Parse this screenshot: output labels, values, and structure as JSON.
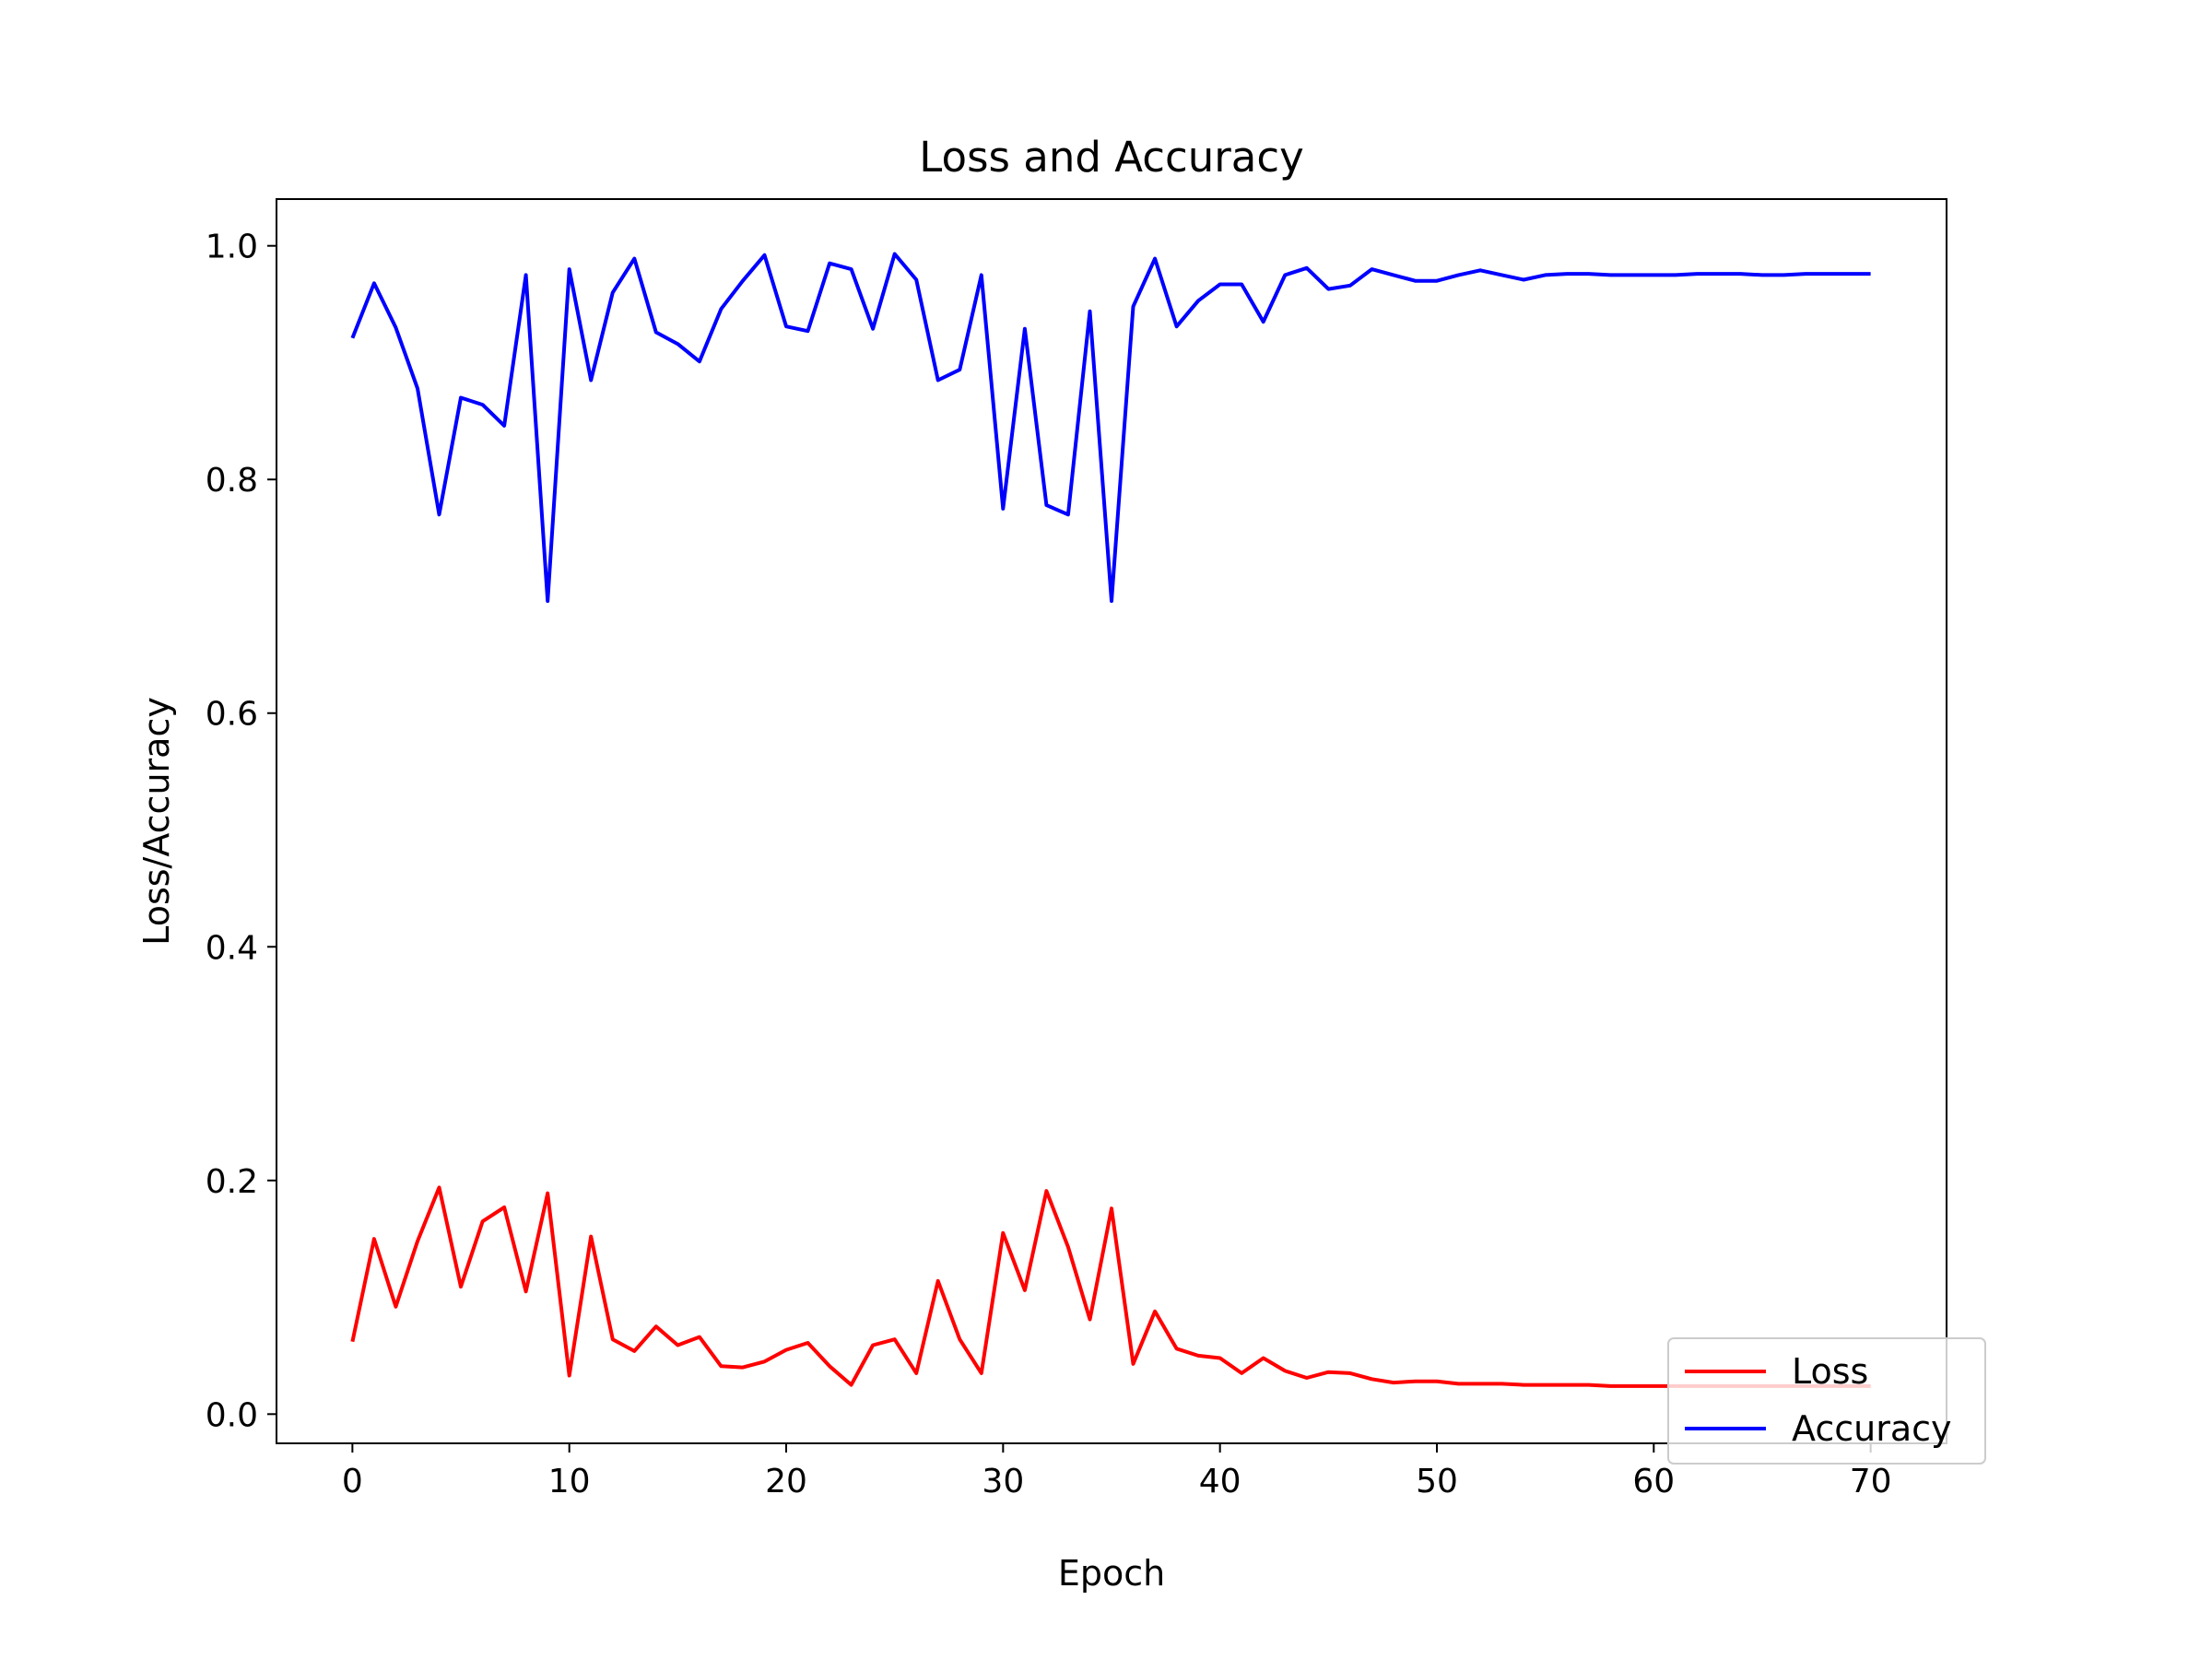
{
  "chart_data": {
    "type": "line",
    "title": "Loss and Accuracy",
    "xlabel": "Epoch",
    "ylabel": "Loss/Accuracy",
    "xlim": [
      -3.5,
      73.5
    ],
    "ylim": [
      -0.025,
      1.04
    ],
    "xticks": [
      0,
      10,
      20,
      30,
      40,
      50,
      60,
      70
    ],
    "yticks": [
      0.0,
      0.2,
      0.4,
      0.6,
      0.8,
      1.0
    ],
    "xtick_labels": [
      "0",
      "10",
      "20",
      "30",
      "40",
      "50",
      "60",
      "70"
    ],
    "ytick_labels": [
      "0.0",
      "0.2",
      "0.4",
      "0.6",
      "0.8",
      "1.0"
    ],
    "grid": false,
    "legend_position": "lower right",
    "x": [
      0,
      1,
      2,
      3,
      4,
      5,
      6,
      7,
      8,
      9,
      10,
      11,
      12,
      13,
      14,
      15,
      16,
      17,
      18,
      19,
      20,
      21,
      22,
      23,
      24,
      25,
      26,
      27,
      28,
      29,
      30,
      31,
      32,
      33,
      34,
      35,
      36,
      37,
      38,
      39,
      40,
      41,
      42,
      43,
      44,
      45,
      46,
      47,
      48,
      49,
      50,
      51,
      52,
      53,
      54,
      55,
      56,
      57,
      58,
      59,
      60,
      61,
      62,
      63,
      64,
      65,
      66,
      67,
      68,
      69,
      70
    ],
    "series": [
      {
        "name": "Loss",
        "color": "#ff0000",
        "values": [
          0.062,
          0.15,
          0.092,
          0.148,
          0.194,
          0.109,
          0.165,
          0.177,
          0.105,
          0.189,
          0.033,
          0.152,
          0.064,
          0.054,
          0.075,
          0.059,
          0.066,
          0.041,
          0.04,
          0.045,
          0.055,
          0.061,
          0.041,
          0.025,
          0.059,
          0.064,
          0.035,
          0.114,
          0.064,
          0.035,
          0.155,
          0.106,
          0.191,
          0.143,
          0.081,
          0.176,
          0.043,
          0.088,
          0.056,
          0.05,
          0.048,
          0.035,
          0.048,
          0.037,
          0.031,
          0.036,
          0.035,
          0.03,
          0.027,
          0.028,
          0.028,
          0.026,
          0.026,
          0.026,
          0.025,
          0.025,
          0.025,
          0.025,
          0.024,
          0.024,
          0.024,
          0.024,
          0.024,
          0.024,
          0.024,
          0.024,
          0.024,
          0.024,
          0.024,
          0.024,
          0.024
        ]
      },
      {
        "name": "Accuracy",
        "color": "#0000ff",
        "values": [
          0.921,
          0.968,
          0.93,
          0.878,
          0.77,
          0.87,
          0.864,
          0.846,
          0.975,
          0.696,
          0.98,
          0.885,
          0.96,
          0.989,
          0.926,
          0.916,
          0.901,
          0.946,
          0.97,
          0.992,
          0.931,
          0.927,
          0.985,
          0.98,
          0.929,
          0.993,
          0.971,
          0.885,
          0.894,
          0.975,
          0.775,
          0.929,
          0.778,
          0.77,
          0.944,
          0.696,
          0.948,
          0.989,
          0.931,
          0.953,
          0.967,
          0.967,
          0.935,
          0.975,
          0.981,
          0.963,
          0.966,
          0.98,
          0.975,
          0.97,
          0.97,
          0.975,
          0.979,
          0.975,
          0.971,
          0.975,
          0.976,
          0.976,
          0.975,
          0.975,
          0.975,
          0.975,
          0.976,
          0.976,
          0.976,
          0.975,
          0.975,
          0.976,
          0.976,
          0.976,
          0.976
        ]
      }
    ]
  }
}
